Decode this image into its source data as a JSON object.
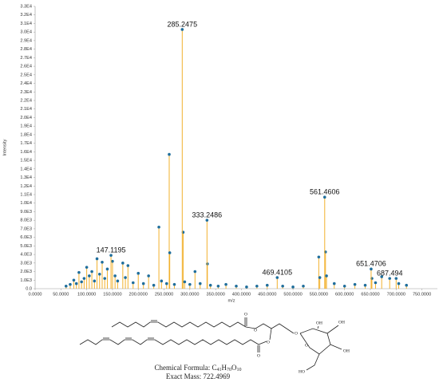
{
  "chart_data": {
    "type": "stem",
    "x_label": "m/z",
    "y_label": "Intensity",
    "xlim": [
      0,
      780
    ],
    "ylim": [
      0,
      33000
    ],
    "xticks": [
      {
        "value": 0,
        "label": "0.0000"
      },
      {
        "value": 50,
        "label": "50.0000"
      },
      {
        "value": 100,
        "label": "100.0000"
      },
      {
        "value": 150,
        "label": "150.0000"
      },
      {
        "value": 200,
        "label": "200.0000"
      },
      {
        "value": 250,
        "label": "250.0000"
      },
      {
        "value": 300,
        "label": "300.0000"
      },
      {
        "value": 350,
        "label": "350.0000"
      },
      {
        "value": 400,
        "label": "400.0000"
      },
      {
        "value": 450,
        "label": "450.0000"
      },
      {
        "value": 500,
        "label": "500.0000"
      },
      {
        "value": 550,
        "label": "550.0000"
      },
      {
        "value": 600,
        "label": "600.0000"
      },
      {
        "value": 650,
        "label": "650.0000"
      },
      {
        "value": 700,
        "label": "700.0000"
      },
      {
        "value": 750,
        "label": "750.0000"
      }
    ],
    "yticks": [
      {
        "value": 0,
        "label": "0.0"
      },
      {
        "value": 1000,
        "label": "1.0E3"
      },
      {
        "value": 2000,
        "label": "2.0E3"
      },
      {
        "value": 3000,
        "label": "3.0E3"
      },
      {
        "value": 4000,
        "label": "4.0E3"
      },
      {
        "value": 5000,
        "label": "5.0E3"
      },
      {
        "value": 6000,
        "label": "6.0E3"
      },
      {
        "value": 7000,
        "label": "7.0E3"
      },
      {
        "value": 8000,
        "label": "8.0E3"
      },
      {
        "value": 9000,
        "label": "9.0E3"
      },
      {
        "value": 10000,
        "label": "1.0E4"
      },
      {
        "value": 11000,
        "label": "1.1E4"
      },
      {
        "value": 12000,
        "label": "1.2E4"
      },
      {
        "value": 13000,
        "label": "1.3E4"
      },
      {
        "value": 14000,
        "label": "1.4E4"
      },
      {
        "value": 15000,
        "label": "1.5E4"
      },
      {
        "value": 16000,
        "label": "1.6E4"
      },
      {
        "value": 17000,
        "label": "1.7E4"
      },
      {
        "value": 18000,
        "label": "1.8E4"
      },
      {
        "value": 19000,
        "label": "1.9E4"
      },
      {
        "value": 20000,
        "label": "2.0E4"
      },
      {
        "value": 21000,
        "label": "2.1E4"
      },
      {
        "value": 22000,
        "label": "2.2E4"
      },
      {
        "value": 23000,
        "label": "2.3E4"
      },
      {
        "value": 24000,
        "label": "2.4E4"
      },
      {
        "value": 25000,
        "label": "2.5E4"
      },
      {
        "value": 26000,
        "label": "2.6E4"
      },
      {
        "value": 27000,
        "label": "2.7E4"
      },
      {
        "value": 28000,
        "label": "2.8E4"
      },
      {
        "value": 29000,
        "label": "2.9E4"
      },
      {
        "value": 30000,
        "label": "3.0E4"
      },
      {
        "value": 31000,
        "label": "3.1E4"
      },
      {
        "value": 32000,
        "label": "3.2E4"
      },
      {
        "value": 33000,
        "label": "3.3E4"
      }
    ],
    "stem_color": "#f2b12e",
    "marker_color": "#1f6e9c",
    "peaks": {
      "x": [
        60,
        68,
        75,
        80,
        85,
        90,
        95,
        100,
        105,
        110,
        115,
        120,
        125,
        130,
        135,
        140,
        150,
        155,
        160,
        170,
        175,
        180,
        190,
        200,
        210,
        220,
        230,
        240,
        245,
        255,
        260,
        261,
        270,
        287,
        290,
        300,
        310,
        320,
        334,
        340,
        355,
        370,
        390,
        410,
        430,
        450,
        480,
        500,
        520,
        550,
        552,
        563,
        565,
        580,
        600,
        620,
        640,
        653,
        660,
        672,
        700,
        705,
        720
      ],
      "values": [
        300,
        500,
        1000,
        600,
        1900,
        800,
        1200,
        2500,
        1500,
        2000,
        900,
        3500,
        1700,
        3100,
        1200,
        2300,
        3200,
        1500,
        900,
        3000,
        1300,
        2700,
        700,
        1800,
        600,
        1500,
        400,
        7200,
        900,
        600,
        15700,
        4200,
        500,
        6600,
        800,
        500,
        2000,
        600,
        2900,
        400,
        300,
        500,
        300,
        200,
        300,
        400,
        300,
        200,
        300,
        3700,
        1300,
        4300,
        1500,
        600,
        300,
        500,
        400,
        1200,
        700,
        1400,
        1200,
        600,
        400
      ]
    },
    "labeled_peaks": {
      "x": [
        147.1195,
        285.2475,
        333.2486,
        469.4105,
        561.4606,
        651.4706,
        687.494
      ],
      "values": [
        3900,
        30300,
        8000,
        1300,
        10700,
        2300,
        1200
      ]
    }
  },
  "structure": {
    "atoms": [
      "O",
      "O",
      "O",
      "O",
      "O",
      "O",
      "OH",
      "OH",
      "OH",
      "HO"
    ],
    "formula_label": "Chemical Formula:",
    "formula": [
      "C",
      "41",
      "H",
      "70",
      "O",
      "10"
    ],
    "exact_mass": "Exact Mass: 722.4969"
  }
}
